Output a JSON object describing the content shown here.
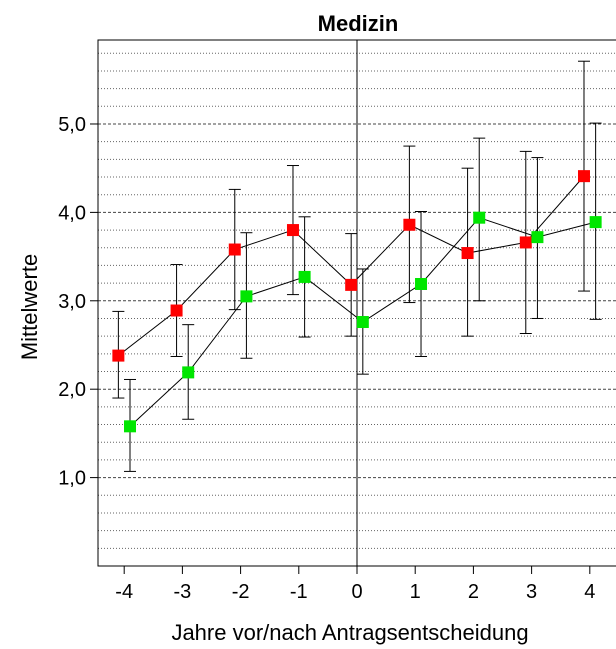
{
  "chart_data": {
    "type": "scatter",
    "title": "Medizin",
    "xlabel": "Jahre vor/nach Antragsentscheidung",
    "ylabel": "Mittelwerte",
    "x_ticks": [
      "-4",
      "-3",
      "-2",
      "-1",
      "0",
      "1",
      "2",
      "3",
      "4"
    ],
    "y_ticks": [
      "1,0",
      "2,0",
      "3,0",
      "4,0",
      "5,0"
    ],
    "xlim": [
      -4.45,
      4.45
    ],
    "ylim": [
      0.0,
      5.95
    ],
    "vline_x": 0,
    "grid": "dotted horizontal minor lines, dashed at major ticks",
    "series": [
      {
        "color": "#ff0000",
        "points": [
          {
            "x": -4.1,
            "y": 2.38,
            "lo": 1.9,
            "hi": 2.88
          },
          {
            "x": -3.1,
            "y": 2.89,
            "lo": 2.37,
            "hi": 3.41
          },
          {
            "x": -2.1,
            "y": 3.58,
            "lo": 2.9,
            "hi": 4.26
          },
          {
            "x": -1.1,
            "y": 3.8,
            "lo": 3.07,
            "hi": 4.53
          },
          {
            "x": -0.1,
            "y": 3.18,
            "lo": 2.6,
            "hi": 3.76
          },
          {
            "x": 0.9,
            "y": 3.86,
            "lo": 2.98,
            "hi": 4.75
          },
          {
            "x": 1.9,
            "y": 3.54,
            "lo": 2.6,
            "hi": 4.5
          },
          {
            "x": 2.9,
            "y": 3.66,
            "lo": 2.63,
            "hi": 4.69
          },
          {
            "x": 3.9,
            "y": 4.41,
            "lo": 3.11,
            "hi": 5.71
          }
        ]
      },
      {
        "color": "#00e600",
        "points": [
          {
            "x": -3.9,
            "y": 1.58,
            "lo": 1.07,
            "hi": 2.11
          },
          {
            "x": -2.9,
            "y": 2.19,
            "lo": 1.66,
            "hi": 2.73
          },
          {
            "x": -1.9,
            "y": 3.05,
            "lo": 2.35,
            "hi": 3.77
          },
          {
            "x": -0.9,
            "y": 3.27,
            "lo": 2.59,
            "hi": 3.95
          },
          {
            "x": 0.1,
            "y": 2.76,
            "lo": 2.17,
            "hi": 3.36
          },
          {
            "x": 1.1,
            "y": 3.19,
            "lo": 2.37,
            "hi": 4.01
          },
          {
            "x": 2.1,
            "y": 3.94,
            "lo": 3.0,
            "hi": 4.84
          },
          {
            "x": 3.1,
            "y": 3.72,
            "lo": 2.8,
            "hi": 4.62
          },
          {
            "x": 4.1,
            "y": 3.89,
            "lo": 2.79,
            "hi": 5.01
          }
        ]
      }
    ]
  }
}
